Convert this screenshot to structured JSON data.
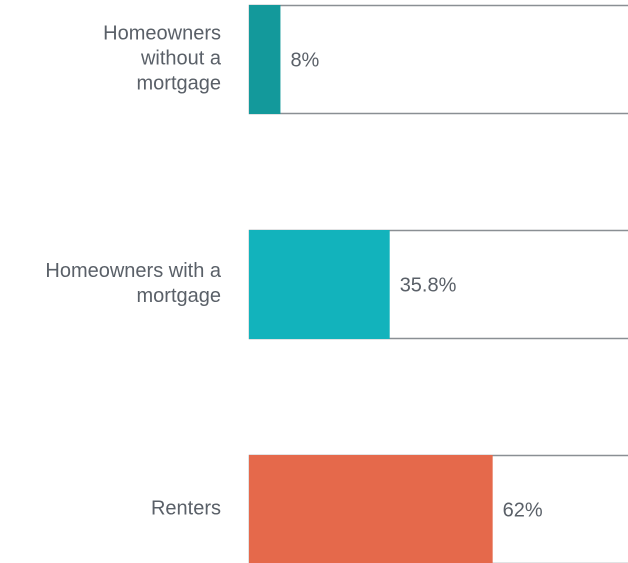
{
  "chart_data": {
    "type": "bar",
    "categories": [
      "Homeowners without a mortgage",
      "Homeowners with a mortgage",
      "Renters"
    ],
    "values": [
      8,
      35.8,
      62
    ],
    "value_labels": [
      "8%",
      "35.8%",
      "62%"
    ],
    "colors": [
      "#13999b",
      "#12b3bc",
      "#e5694b"
    ],
    "xlim": [
      0,
      100
    ]
  }
}
